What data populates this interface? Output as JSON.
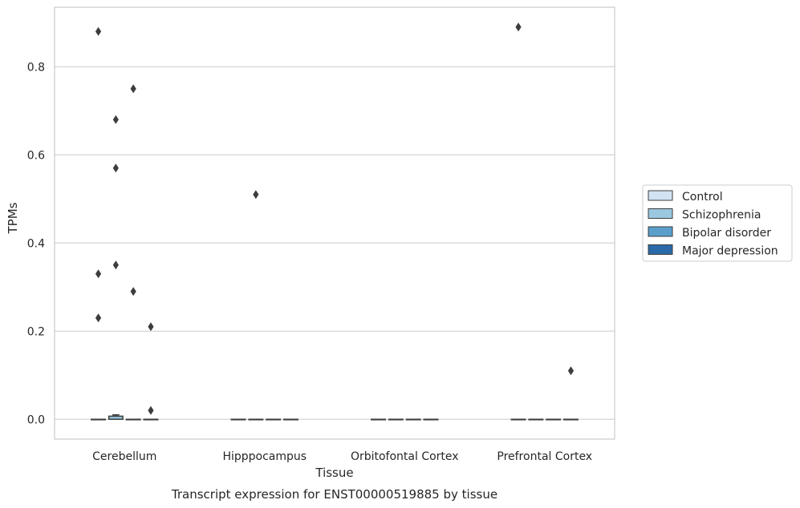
{
  "chart_data": {
    "type": "box",
    "title": "",
    "caption": "Transcript expression for ENST00000519885 by tissue",
    "xlabel": "Tissue",
    "ylabel": "TPMs",
    "ylim": [
      -0.045,
      0.935
    ],
    "yticks": [
      "0.0",
      "0.2",
      "0.4",
      "0.6",
      "0.8"
    ],
    "grid": true,
    "legend_position": "right",
    "categories": [
      "Cerebellum",
      "Hipppocampus",
      "Orbitofontal Cortex",
      "Prefrontal Cortex"
    ],
    "series": [
      {
        "name": "Control",
        "color": "#d2e3f3",
        "boxes": [
          {
            "q1": 0,
            "median": 0,
            "q3": 0,
            "whisker_low": 0,
            "whisker_high": 0,
            "outliers": [
              0.88,
              0.33,
              0.23
            ]
          },
          {
            "q1": 0,
            "median": 0,
            "q3": 0,
            "whisker_low": 0,
            "whisker_high": 0,
            "outliers": []
          },
          {
            "q1": 0,
            "median": 0,
            "q3": 0,
            "whisker_low": 0,
            "whisker_high": 0,
            "outliers": []
          },
          {
            "q1": 0,
            "median": 0,
            "q3": 0,
            "whisker_low": 0,
            "whisker_high": 0,
            "outliers": [
              0.89
            ]
          }
        ]
      },
      {
        "name": "Schizophrenia",
        "color": "#9ac8e0",
        "boxes": [
          {
            "q1": 0,
            "median": 0,
            "q3": 0.007,
            "whisker_low": 0,
            "whisker_high": 0.01,
            "outliers": [
              0.68,
              0.57,
              0.35
            ]
          },
          {
            "q1": 0,
            "median": 0,
            "q3": 0,
            "whisker_low": 0,
            "whisker_high": 0,
            "outliers": [
              0.51
            ]
          },
          {
            "q1": 0,
            "median": 0,
            "q3": 0,
            "whisker_low": 0,
            "whisker_high": 0,
            "outliers": []
          },
          {
            "q1": 0,
            "median": 0,
            "q3": 0,
            "whisker_low": 0,
            "whisker_high": 0,
            "outliers": []
          }
        ]
      },
      {
        "name": "Bipolar disorder",
        "color": "#5a9fcb",
        "boxes": [
          {
            "q1": 0,
            "median": 0,
            "q3": 0,
            "whisker_low": 0,
            "whisker_high": 0,
            "outliers": [
              0.75,
              0.29
            ]
          },
          {
            "q1": 0,
            "median": 0,
            "q3": 0,
            "whisker_low": 0,
            "whisker_high": 0,
            "outliers": []
          },
          {
            "q1": 0,
            "median": 0,
            "q3": 0,
            "whisker_low": 0,
            "whisker_high": 0,
            "outliers": []
          },
          {
            "q1": 0,
            "median": 0,
            "q3": 0,
            "whisker_low": 0,
            "whisker_high": 0,
            "outliers": []
          }
        ]
      },
      {
        "name": "Major depression",
        "color": "#2a6aa8",
        "boxes": [
          {
            "q1": 0,
            "median": 0,
            "q3": 0,
            "whisker_low": 0,
            "whisker_high": 0,
            "outliers": [
              0.21,
              0.02
            ]
          },
          {
            "q1": 0,
            "median": 0,
            "q3": 0,
            "whisker_low": 0,
            "whisker_high": 0,
            "outliers": []
          },
          {
            "q1": 0,
            "median": 0,
            "q3": 0,
            "whisker_low": 0,
            "whisker_high": 0,
            "outliers": []
          },
          {
            "q1": 0,
            "median": 0,
            "q3": 0,
            "whisker_low": 0,
            "whisker_high": 0,
            "outliers": [
              0.11
            ]
          }
        ]
      }
    ]
  }
}
